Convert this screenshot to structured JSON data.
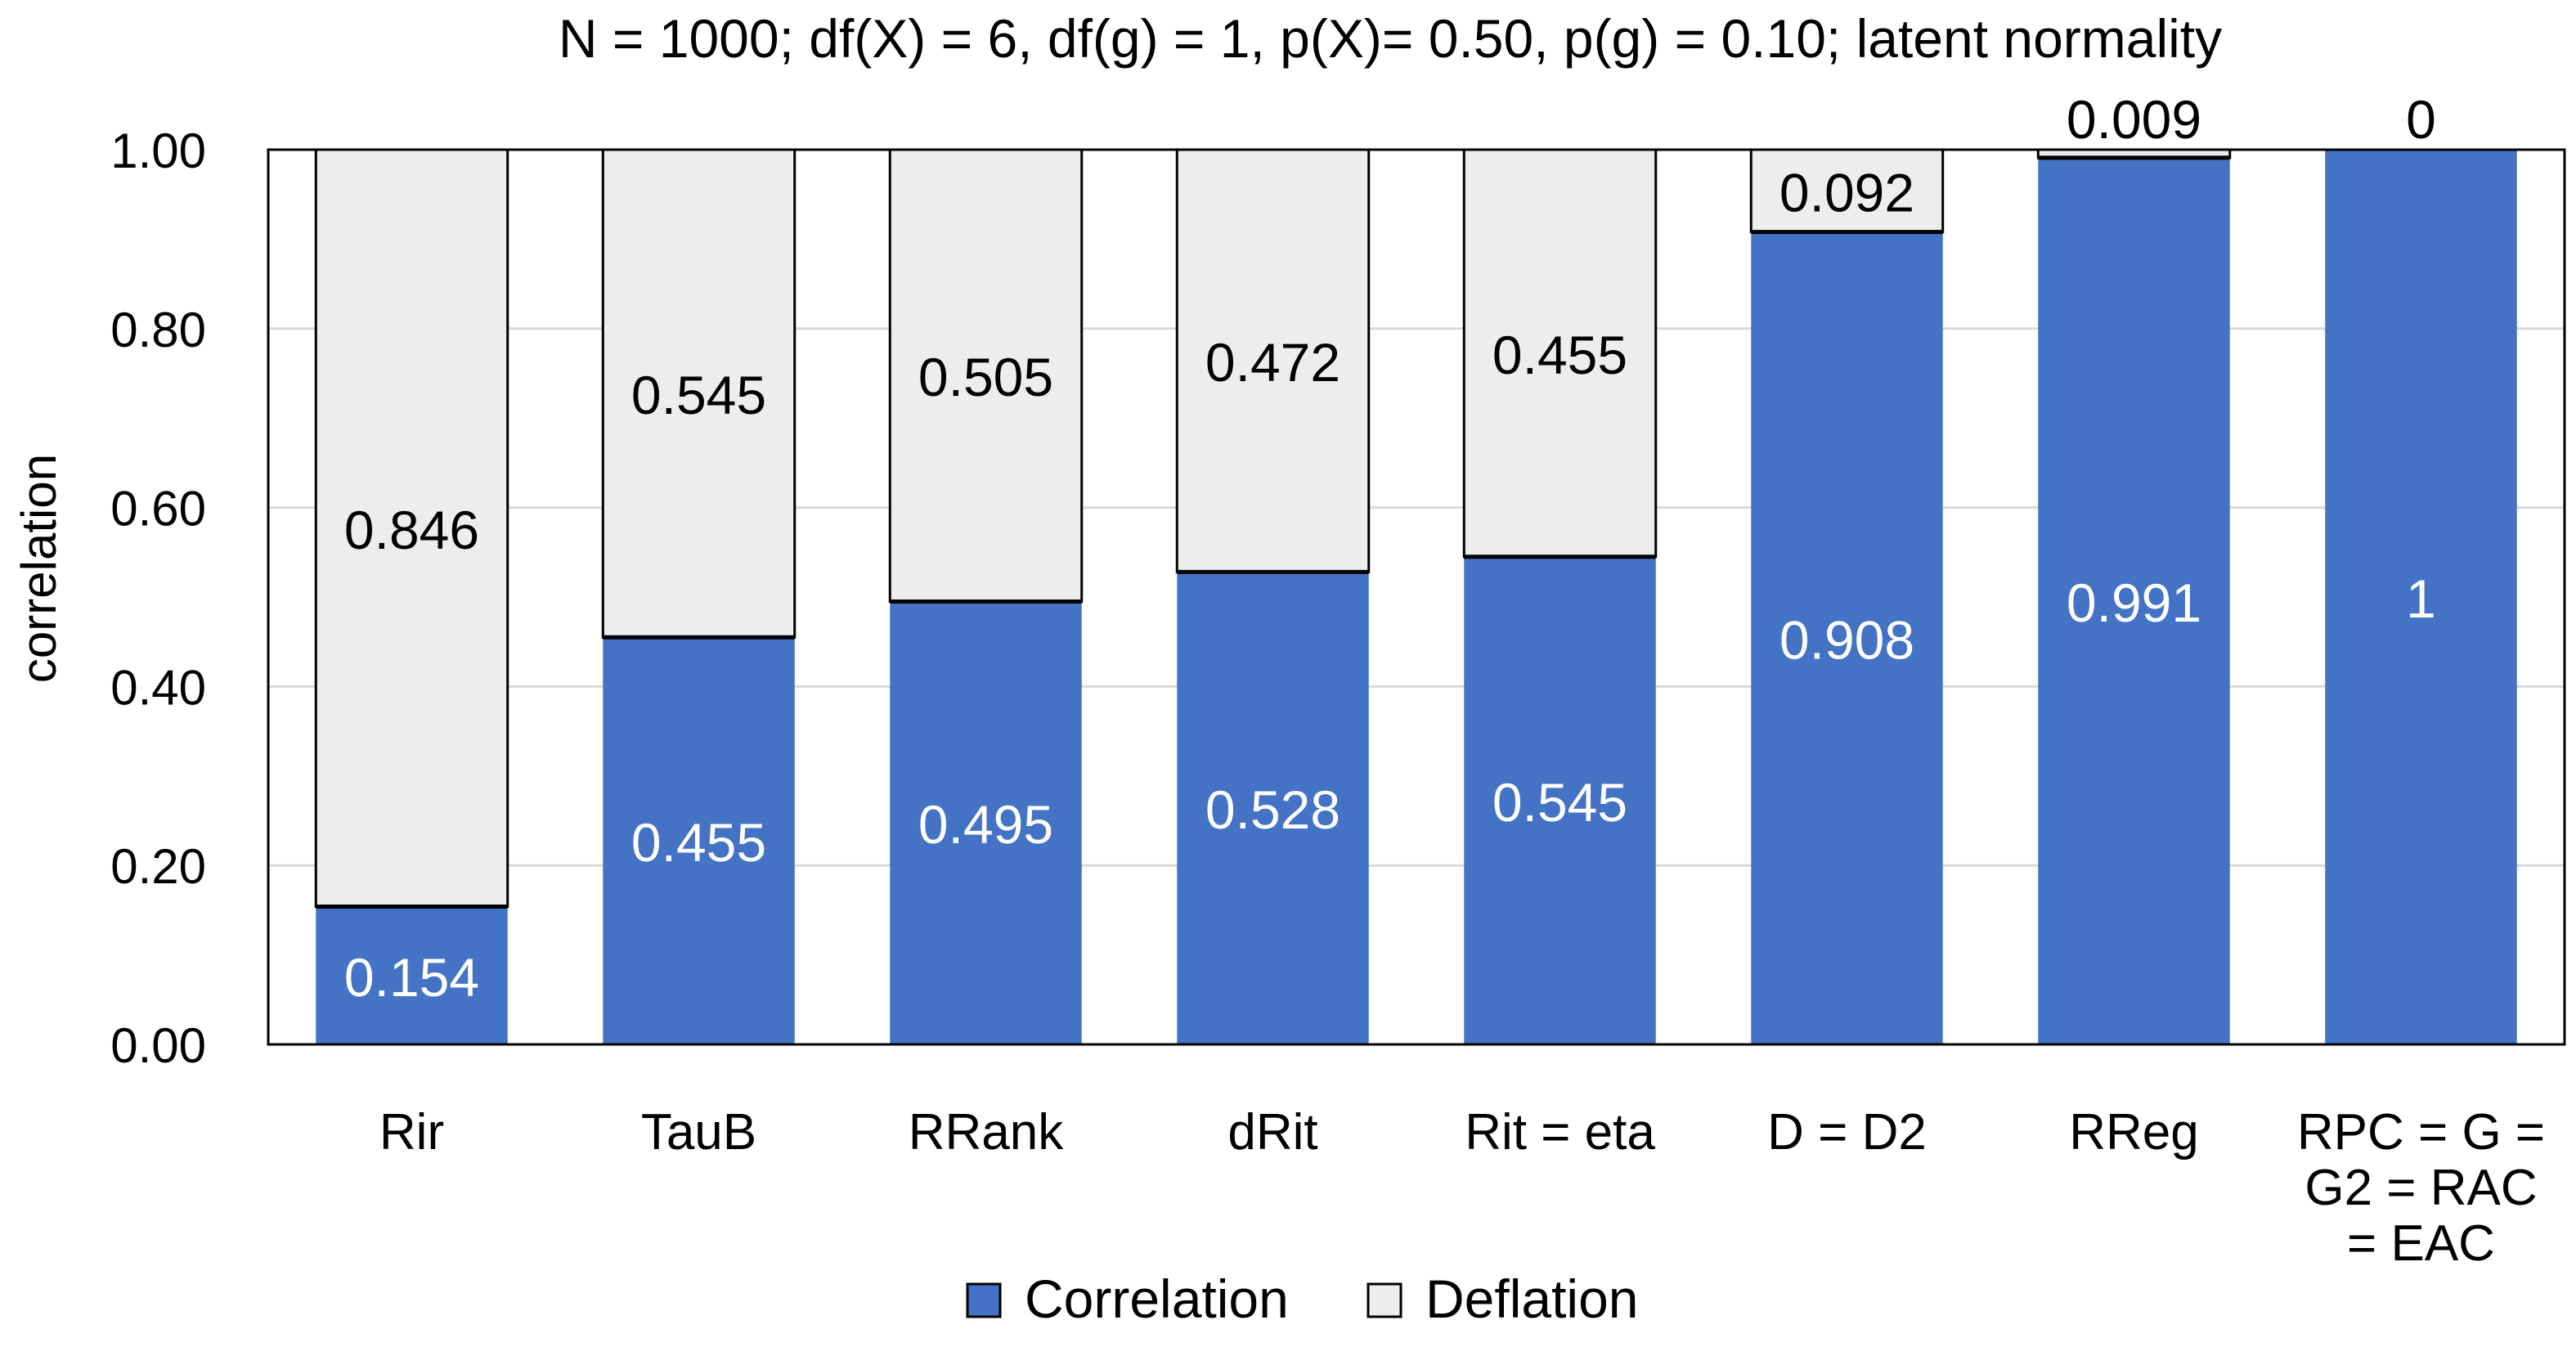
{
  "chart_data": {
    "type": "bar",
    "stacked": true,
    "title": "N = 1000; df(X) = 6, df(g) = 1, p(X)= 0.50, p(g) = 0.10; latent normality",
    "xlabel": "",
    "ylabel": "correlation",
    "ylim": [
      0,
      1
    ],
    "y_ticks": [
      "0.00",
      "0.20",
      "0.40",
      "0.60",
      "0.80",
      "1.00"
    ],
    "grid": true,
    "legend_position": "bottom",
    "categories": [
      [
        "Rir"
      ],
      [
        "TauB"
      ],
      [
        "RRank"
      ],
      [
        "dRit"
      ],
      [
        "Rit = eta"
      ],
      [
        "D = D2"
      ],
      [
        "RReg"
      ],
      [
        "RPC = G =",
        "G2 = RAC",
        "= EAC"
      ]
    ],
    "series": [
      {
        "name": "Correlation",
        "color": "#4472C4",
        "values": [
          0.154,
          0.455,
          0.495,
          0.528,
          0.545,
          0.908,
          0.991,
          1
        ],
        "labels": [
          "0.154",
          "0.455",
          "0.495",
          "0.528",
          "0.545",
          "0.908",
          "0.991",
          "1"
        ]
      },
      {
        "name": "Deflation",
        "color": "#EDEDED",
        "values": [
          0.846,
          0.545,
          0.505,
          0.472,
          0.455,
          0.092,
          0.009,
          0
        ],
        "labels": [
          "0.846",
          "0.545",
          "0.505",
          "0.472",
          "0.455",
          "0.092",
          "0.009",
          "0"
        ]
      }
    ]
  }
}
